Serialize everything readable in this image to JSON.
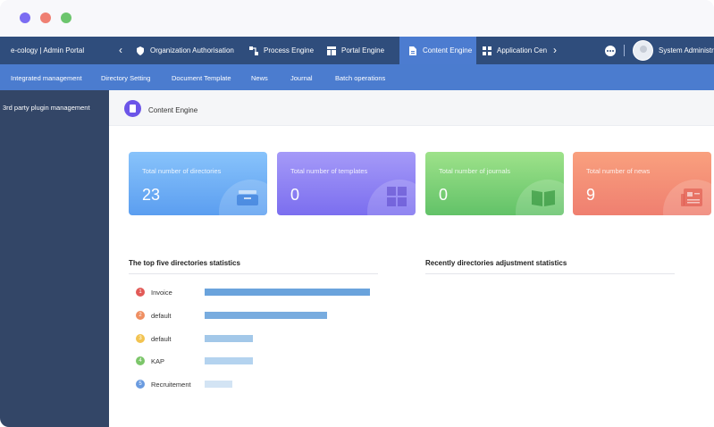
{
  "topnav": {
    "brand": "e-cology | Admin Portal",
    "tabs": [
      {
        "label": "Organization Authorisation",
        "icon": "shield-icon"
      },
      {
        "label": "Process Engine",
        "icon": "flow-icon"
      },
      {
        "label": "Portal Engine",
        "icon": "layout-icon"
      },
      {
        "label": "Content Engine",
        "icon": "document-icon",
        "active": true
      },
      {
        "label": "Application Cen",
        "icon": "grid-icon"
      }
    ],
    "user": "System Administrator"
  },
  "subnav": {
    "items": [
      "Integrated management",
      "Directory Setting",
      "Document Template",
      "News",
      "Journal",
      "Batch operations"
    ]
  },
  "sidebar": {
    "items": [
      "3rd party plugin management"
    ]
  },
  "page": {
    "title": "Content Engine"
  },
  "cards": [
    {
      "label": "Total number of directories",
      "value": "23",
      "icon": "inbox-tray-icon"
    },
    {
      "label": "Total number of templates",
      "value": "0",
      "icon": "grid-icon"
    },
    {
      "label": "Total number of journals",
      "value": "0",
      "icon": "book-icon"
    },
    {
      "label": "Total number of news",
      "value": "9",
      "icon": "newspaper-icon"
    }
  ],
  "stats": {
    "left_title": "The top five directories statistics",
    "right_title": "Recently directories adjustment statistics",
    "rows": [
      {
        "rank": "1",
        "name": "Invoice",
        "value": 1.0
      },
      {
        "rank": "2",
        "name": "default",
        "value": 0.74
      },
      {
        "rank": "3",
        "name": "default",
        "value": 0.29
      },
      {
        "rank": "4",
        "name": "KAP",
        "value": 0.29
      },
      {
        "rank": "5",
        "name": "Recruitement",
        "value": 0.17
      }
    ]
  },
  "colors": {
    "topnav": "#2f4d7c",
    "subnav": "#4b7ccf",
    "sidebar": "#334667",
    "rank": [
      "#e25a57",
      "#ef8f62",
      "#f2c350",
      "#7cc66a",
      "#6a9be0"
    ],
    "bars": [
      "#6aa3dc",
      "#78acdf",
      "#a3c8e9",
      "#b4d3ef",
      "#d3e4f4"
    ]
  }
}
